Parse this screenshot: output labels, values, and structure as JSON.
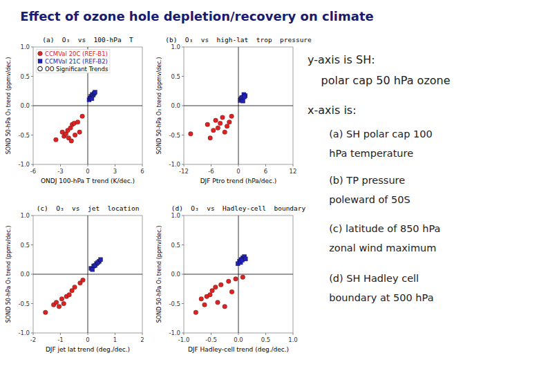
{
  "title": "Effect of ozone hole depletion/recovery on climate",
  "annotations": [
    "y-axis is SH:",
    "polar cap 50 hPa ozone",
    "x-axis is:",
    "(a) SH polar cap 100",
    "hPa temperature",
    "(b) TP pressure",
    "poleward of 50S",
    "(c) latitude of 850 hPa",
    "zonal wind maximum",
    "(d) SH Hadley cell",
    "boundary at 500 hPa"
  ],
  "chart_data": [
    {
      "type": "scatter",
      "title": "(a)  O₃  vs  100-hPa  T",
      "x_label": "ONDJ 100-hPa T trend (K/dec.)",
      "y_label": "SOND 50-hPa O₃ trend (ppmv/dec.)",
      "xlim": [
        -6.0,
        6.0
      ],
      "ylim": [
        -1.0,
        1.0
      ],
      "xticks": [
        -6,
        -3,
        0,
        3,
        6
      ],
      "yticks": [
        {
          "value": -1.0,
          "label": "-1.0"
        },
        -0.5,
        {
          "value": 0.0,
          "label": "0.0"
        },
        0.5,
        {
          "value": 1.0,
          "label": "1.0"
        }
      ],
      "legend": "upper left",
      "series": [
        {
          "name": "CCMVal 20C (REF-B1)",
          "color": "#DD2222",
          "marker": "circle",
          "x": [
            -3.5,
            -2.8,
            -2.6,
            -2.4,
            -2.2,
            -2.1,
            -1.9,
            -1.7,
            -1.8,
            -1.5,
            -1.4,
            -1.1,
            -0.9,
            -0.6
          ],
          "values": [
            -0.58,
            -0.45,
            -0.52,
            -0.48,
            -0.42,
            -0.55,
            -0.38,
            -0.32,
            -0.6,
            -0.3,
            -0.5,
            -0.28,
            -0.45,
            -0.18
          ]
        },
        {
          "name": "CCMVal 21C (REF-B2)",
          "color": "#2222BB",
          "marker": "square",
          "x": [
            0.15,
            0.25,
            0.35,
            0.5,
            0.45,
            0.6,
            0.7,
            0.8
          ],
          "values": [
            0.1,
            0.13,
            0.16,
            0.19,
            0.12,
            0.18,
            0.21,
            0.23
          ]
        },
        {
          "name": "OO Significant Trends",
          "color": "#000000",
          "marker": "circle-open",
          "x": [],
          "values": []
        }
      ]
    },
    {
      "type": "scatter",
      "title": "(b)  O₃  vs  high-lat  trop  pressure",
      "x_label": "DJF Ptro trend (hPa/dec.)",
      "y_label": "SOND 50-hPa O₃ trend (ppmv/dec.)",
      "xlim": [
        -12.0,
        12.0
      ],
      "ylim": [
        -1.0,
        1.0
      ],
      "xticks": [
        -12,
        -6,
        0,
        6,
        12
      ],
      "yticks": [
        {
          "value": -1.0,
          "label": "-1.0"
        },
        -0.5,
        {
          "value": 0.0,
          "label": "0.0"
        },
        0.5,
        {
          "value": 1.0,
          "label": "1.0"
        }
      ],
      "series": [
        {
          "color": "#DD2222",
          "marker": "circle",
          "x": [
            -10.5,
            -6.8,
            -6.2,
            -5.5,
            -5.0,
            -4.5,
            -4.0,
            -3.5,
            -3.0,
            -2.5,
            -2.0,
            -1.5
          ],
          "values": [
            -0.48,
            -0.32,
            -0.55,
            -0.42,
            -0.25,
            -0.38,
            -0.3,
            -0.2,
            -0.45,
            -0.35,
            -0.28,
            -0.18
          ]
        },
        {
          "color": "#2222BB",
          "marker": "square",
          "x": [
            0.5,
            0.8,
            1.2,
            1.5,
            0.4,
            0.7,
            1.0,
            1.3
          ],
          "values": [
            0.11,
            0.14,
            0.19,
            0.17,
            0.09,
            0.13,
            0.08,
            0.15
          ]
        }
      ]
    },
    {
      "type": "scatter",
      "title": "(c)  O₃  vs  jet  location",
      "x_label": "DJF jet lat trend (deg./dec.)",
      "y_label": "SOND 50-hPa O₃ trend (ppmv/dec.)",
      "xlim": [
        -2.0,
        2.0
      ],
      "ylim": [
        -1.0,
        1.0
      ],
      "xticks": [
        -2,
        -1,
        0,
        1,
        2
      ],
      "yticks": [
        {
          "value": -1.0,
          "label": "-1.0"
        },
        -0.5,
        {
          "value": 0.0,
          "label": "0.0"
        },
        0.5,
        {
          "value": 1.0,
          "label": "1.0"
        }
      ],
      "series": [
        {
          "color": "#DD2222",
          "marker": "circle",
          "x": [
            -1.55,
            -1.25,
            -1.15,
            -1.05,
            -0.95,
            -0.88,
            -0.78,
            -0.68,
            -0.58,
            -0.48,
            -0.28,
            -0.18
          ],
          "values": [
            -0.65,
            -0.52,
            -0.48,
            -0.55,
            -0.42,
            -0.5,
            -0.38,
            -0.35,
            -0.28,
            -0.22,
            -0.15,
            -0.1
          ]
        },
        {
          "color": "#2222BB",
          "marker": "square",
          "x": [
            0.12,
            0.22,
            0.32,
            0.42,
            0.17,
            0.27,
            0.37,
            0.47
          ],
          "values": [
            0.1,
            0.14,
            0.18,
            0.22,
            0.08,
            0.15,
            0.2,
            0.25
          ]
        }
      ]
    },
    {
      "type": "scatter",
      "title": "(d)  O₃  vs  Hadley-cell  boundary",
      "x_label": "DJF Hadley-cell trend (deg./dec.)",
      "y_label": "SOND 50-hPa O₃ trend (ppmv/dec.)",
      "xlim": [
        -1.0,
        1.0
      ],
      "ylim": [
        -1.0,
        1.0
      ],
      "xticks": [
        {
          "value": -1.0,
          "label": "-1.0"
        },
        -0.5,
        {
          "value": 0.0,
          "label": "0.0"
        },
        0.5,
        {
          "value": 1.0,
          "label": "1.0"
        }
      ],
      "yticks": [
        {
          "value": -1.0,
          "label": "-1.0"
        },
        -0.5,
        {
          "value": 0.0,
          "label": "0.0"
        },
        0.5,
        {
          "value": 1.0,
          "label": "1.0"
        }
      ],
      "series": [
        {
          "color": "#DD2222",
          "marker": "circle",
          "x": [
            -0.78,
            -0.68,
            -0.62,
            -0.58,
            -0.52,
            -0.48,
            -0.42,
            -0.38,
            -0.32,
            -0.25,
            -0.18,
            -0.12,
            0.08,
            -0.05
          ],
          "values": [
            -0.65,
            -0.42,
            -0.52,
            -0.38,
            -0.35,
            -0.28,
            -0.22,
            -0.48,
            -0.18,
            -0.55,
            -0.12,
            -0.3,
            -0.05,
            -0.08
          ]
        },
        {
          "color": "#2222BB",
          "marker": "square",
          "x": [
            0.02,
            0.05,
            0.08,
            0.11,
            -0.01,
            0.04,
            0.07,
            0.13
          ],
          "values": [
            0.22,
            0.25,
            0.28,
            0.3,
            0.18,
            0.2,
            0.24,
            0.26
          ]
        }
      ]
    }
  ]
}
